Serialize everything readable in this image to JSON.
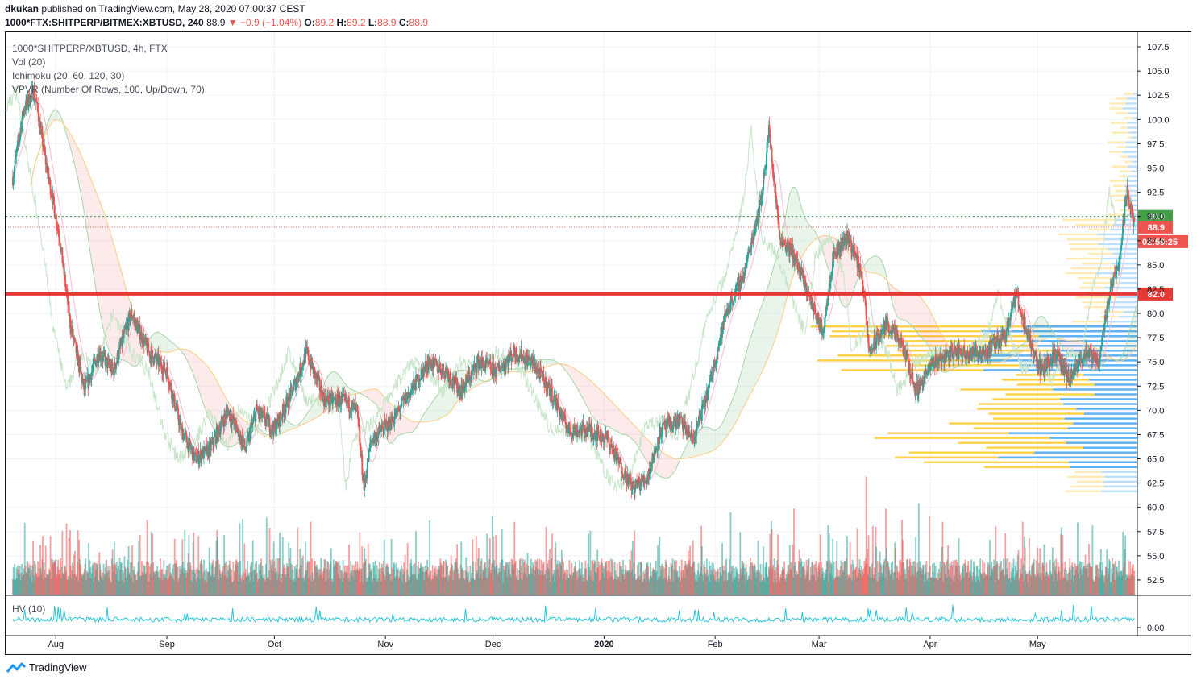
{
  "header": {
    "author": "dkukan",
    "published": "published on TradingView.com, May 28, 2020 07:00:37 CEST",
    "symbol_full": "1000*FTX:SHITPERP/BITMEX:XBTUSD, 240",
    "last": "88.9",
    "change": "−0.9 (−1.04%)",
    "o_label": "O:",
    "o": "89.2",
    "h_label": "H:",
    "h": "89.2",
    "l_label": "L:",
    "l": "88.9",
    "c_label": "C:",
    "c": "88.9"
  },
  "legend": {
    "symbol": "1000*SHITPERP/XBTUSD, 4h, FTX",
    "vol": "Vol (20)",
    "ichimoku": "Ichimoku (20, 60, 120, 30)",
    "vpvr": "VPVR (Number Of Rows, 100, Up/Down, 70)",
    "hv": "HV (10)"
  },
  "branding": "TradingView",
  "colors": {
    "up": "#26a69a",
    "down": "#ef5350",
    "hline_red": "#e53935",
    "hline_green": "#43a047",
    "vpvr_up": "#2196f3",
    "vpvr_down": "#ffc107",
    "hv_line": "#26c6da"
  },
  "chart_data": {
    "type": "candlestick",
    "timeframe": "4h",
    "x_ticks": [
      "Aug",
      "Sep",
      "Oct",
      "Nov",
      "Dec",
      "2020",
      "Feb",
      "Mar",
      "Apr",
      "May"
    ],
    "y_ticks": [
      "107.5",
      "105.0",
      "102.5",
      "100.0",
      "97.5",
      "95.0",
      "92.5",
      "90.0",
      "87.5",
      "85.0",
      "82.5",
      "80.0",
      "77.5",
      "75.0",
      "72.5",
      "70.0",
      "67.5",
      "65.0",
      "62.5",
      "60.0",
      "57.5",
      "55.0",
      "52.5"
    ],
    "ylim": [
      51,
      109
    ],
    "hv_ticks": [
      "0.00"
    ],
    "price_path": [
      {
        "date": "2019-07-20",
        "close": 94
      },
      {
        "date": "2019-07-23",
        "close": 101
      },
      {
        "date": "2019-07-26",
        "close": 103
      },
      {
        "date": "2019-07-29",
        "close": 96
      },
      {
        "date": "2019-08-02",
        "close": 88
      },
      {
        "date": "2019-08-05",
        "close": 79
      },
      {
        "date": "2019-08-09",
        "close": 72
      },
      {
        "date": "2019-08-13",
        "close": 76
      },
      {
        "date": "2019-08-17",
        "close": 74
      },
      {
        "date": "2019-08-22",
        "close": 80
      },
      {
        "date": "2019-08-27",
        "close": 76
      },
      {
        "date": "2019-09-01",
        "close": 74
      },
      {
        "date": "2019-09-05",
        "close": 68
      },
      {
        "date": "2019-09-09",
        "close": 65
      },
      {
        "date": "2019-09-13",
        "close": 66
      },
      {
        "date": "2019-09-18",
        "close": 70
      },
      {
        "date": "2019-09-23",
        "close": 66
      },
      {
        "date": "2019-09-26",
        "close": 70
      },
      {
        "date": "2019-10-01",
        "close": 68
      },
      {
        "date": "2019-10-06",
        "close": 72
      },
      {
        "date": "2019-10-10",
        "close": 76
      },
      {
        "date": "2019-10-15",
        "close": 71
      },
      {
        "date": "2019-10-20",
        "close": 71
      },
      {
        "date": "2019-10-24",
        "close": 70
      },
      {
        "date": "2019-10-26",
        "close": 62
      },
      {
        "date": "2019-10-28",
        "close": 67
      },
      {
        "date": "2019-11-03",
        "close": 69
      },
      {
        "date": "2019-11-08",
        "close": 72
      },
      {
        "date": "2019-11-13",
        "close": 75
      },
      {
        "date": "2019-11-18",
        "close": 74
      },
      {
        "date": "2019-11-22",
        "close": 72
      },
      {
        "date": "2019-11-27",
        "close": 75
      },
      {
        "date": "2019-12-02",
        "close": 74
      },
      {
        "date": "2019-12-07",
        "close": 76
      },
      {
        "date": "2019-12-12",
        "close": 75
      },
      {
        "date": "2019-12-17",
        "close": 72
      },
      {
        "date": "2019-12-22",
        "close": 68
      },
      {
        "date": "2019-12-28",
        "close": 68
      },
      {
        "date": "2020-01-02",
        "close": 67
      },
      {
        "date": "2020-01-06",
        "close": 64
      },
      {
        "date": "2020-01-09",
        "close": 62
      },
      {
        "date": "2020-01-13",
        "close": 63
      },
      {
        "date": "2020-01-17",
        "close": 68
      },
      {
        "date": "2020-01-22",
        "close": 69
      },
      {
        "date": "2020-01-26",
        "close": 67
      },
      {
        "date": "2020-01-30",
        "close": 72
      },
      {
        "date": "2020-02-04",
        "close": 80
      },
      {
        "date": "2020-02-09",
        "close": 84
      },
      {
        "date": "2020-02-14",
        "close": 92
      },
      {
        "date": "2020-02-16",
        "close": 99
      },
      {
        "date": "2020-02-19",
        "close": 88
      },
      {
        "date": "2020-02-23",
        "close": 86
      },
      {
        "date": "2020-02-27",
        "close": 82
      },
      {
        "date": "2020-03-02",
        "close": 78
      },
      {
        "date": "2020-03-05",
        "close": 86
      },
      {
        "date": "2020-03-09",
        "close": 88
      },
      {
        "date": "2020-03-13",
        "close": 84
      },
      {
        "date": "2020-03-15",
        "close": 76
      },
      {
        "date": "2020-03-20",
        "close": 79
      },
      {
        "date": "2020-03-25",
        "close": 76
      },
      {
        "date": "2020-03-28",
        "close": 72
      },
      {
        "date": "2020-04-02",
        "close": 75
      },
      {
        "date": "2020-04-07",
        "close": 76
      },
      {
        "date": "2020-04-12",
        "close": 76
      },
      {
        "date": "2020-04-17",
        "close": 76
      },
      {
        "date": "2020-04-22",
        "close": 78
      },
      {
        "date": "2020-04-25",
        "close": 82
      },
      {
        "date": "2020-04-28",
        "close": 78
      },
      {
        "date": "2020-05-02",
        "close": 74
      },
      {
        "date": "2020-05-06",
        "close": 76
      },
      {
        "date": "2020-05-10",
        "close": 73
      },
      {
        "date": "2020-05-14",
        "close": 76
      },
      {
        "date": "2020-05-18",
        "close": 75
      },
      {
        "date": "2020-05-21",
        "close": 82
      },
      {
        "date": "2020-05-24",
        "close": 86
      },
      {
        "date": "2020-05-26",
        "close": 93
      },
      {
        "date": "2020-05-28",
        "close": 88.9
      }
    ],
    "horizontal_lines": [
      {
        "value": 90.0,
        "label": "90.0",
        "style": "dotted",
        "color": "#43a047"
      },
      {
        "value": 88.9,
        "label": "88.9",
        "style": "dotted",
        "color": "#ef5350"
      },
      {
        "value": 82.0,
        "label": "82.0",
        "style": "solid",
        "color": "#e53935"
      }
    ],
    "countdown": "02:59:25"
  }
}
